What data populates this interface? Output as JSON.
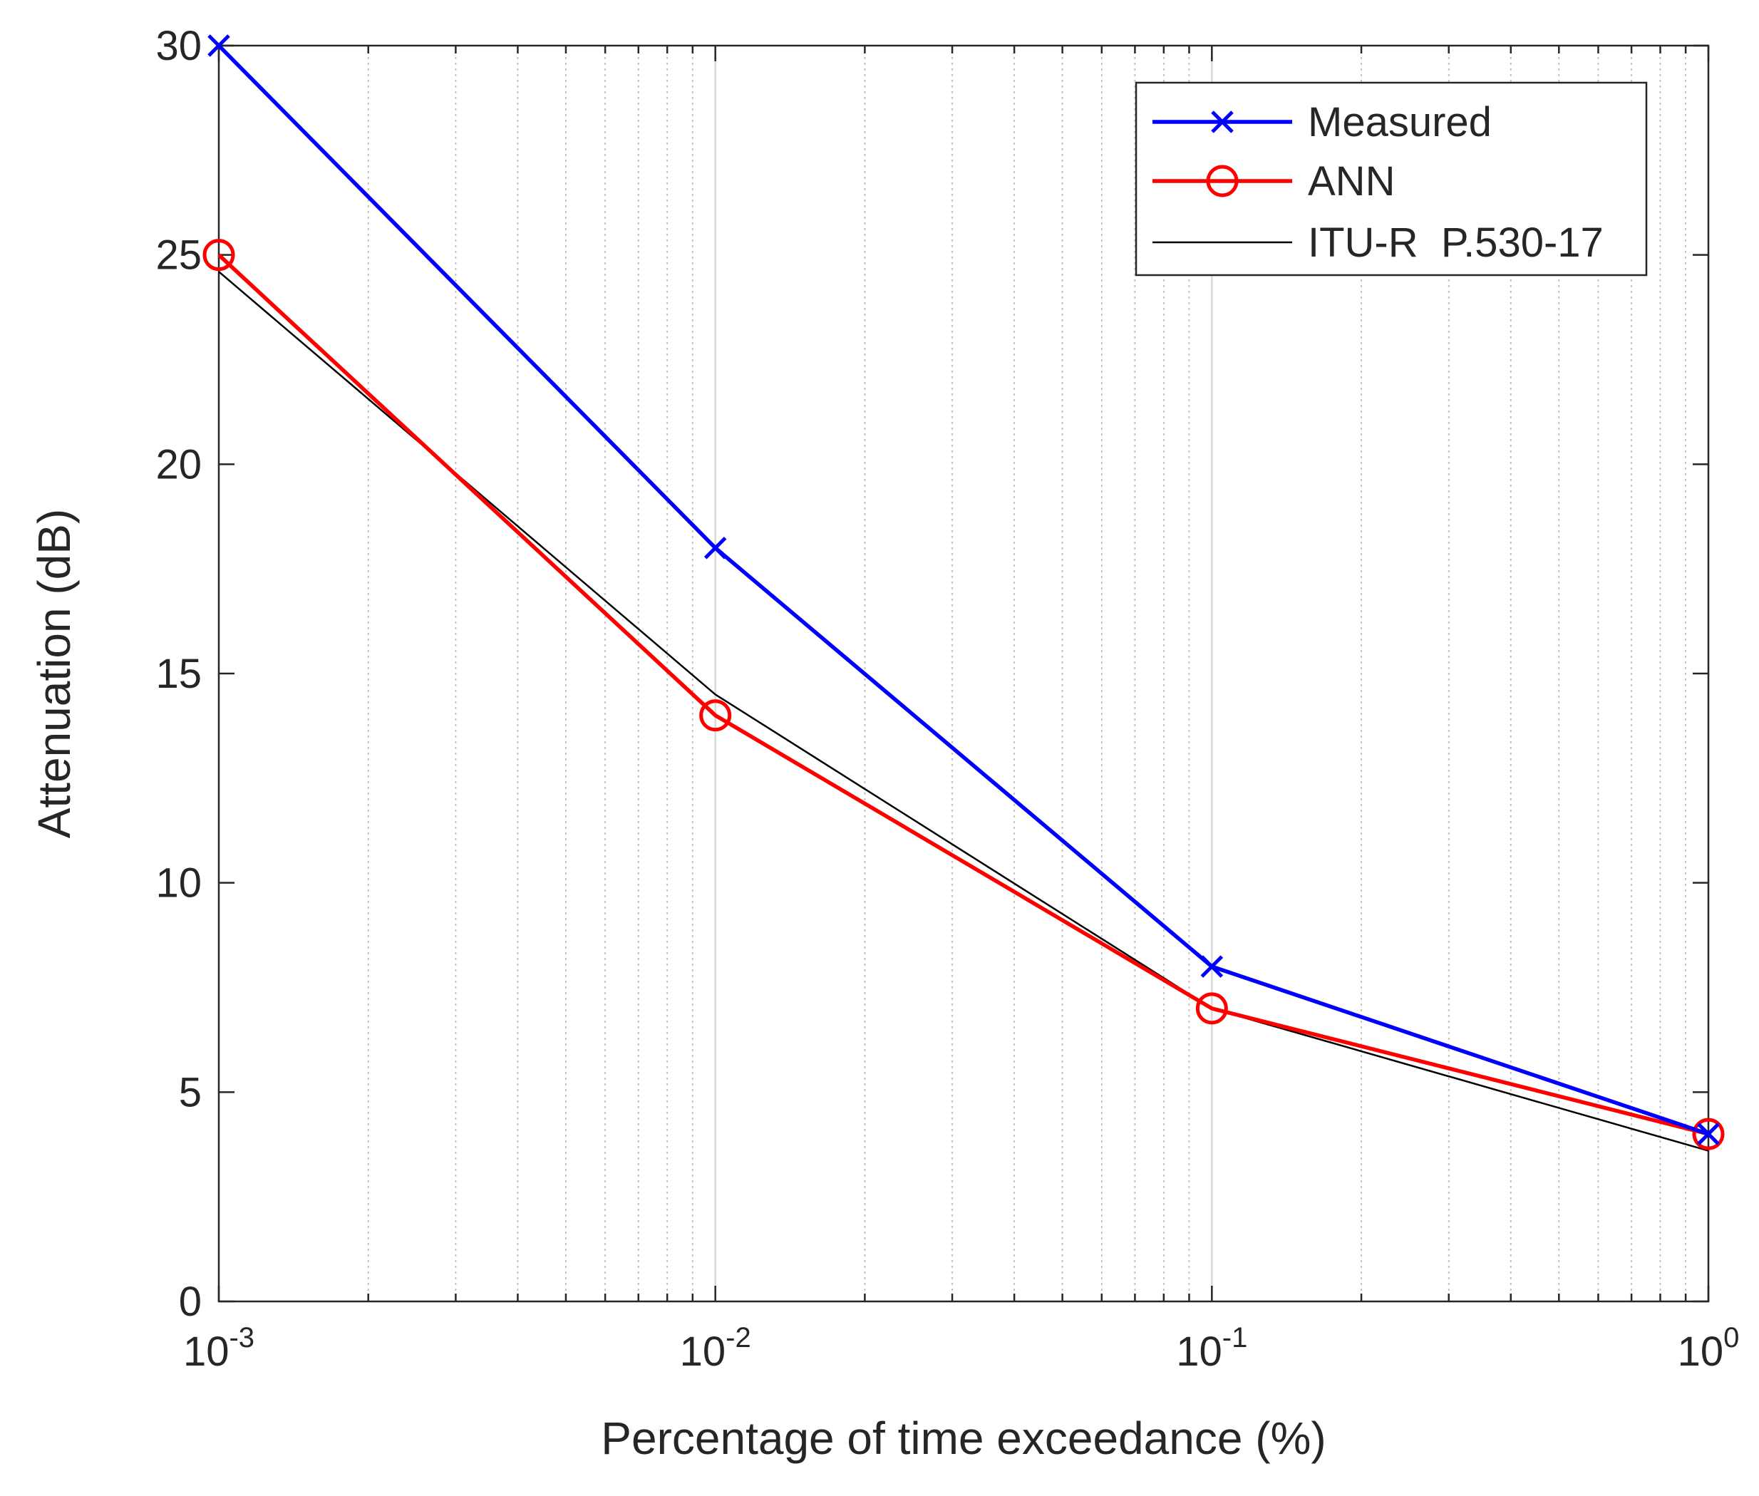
{
  "chart_data": {
    "type": "line",
    "title": "",
    "xlabel": "Percentage of time exceedance (%)",
    "ylabel": "Attenuation (dB)",
    "xscale": "log",
    "xlim": [
      0.001,
      1
    ],
    "ylim": [
      0,
      30
    ],
    "grid": "x-minor-and-major",
    "legend_position": "top-right",
    "x_ticks": [
      {
        "value": 0.001,
        "base": "10",
        "exp": "-3"
      },
      {
        "value": 0.01,
        "base": "10",
        "exp": "-2"
      },
      {
        "value": 0.1,
        "base": "10",
        "exp": "-1"
      },
      {
        "value": 1,
        "base": "10",
        "exp": "0"
      }
    ],
    "y_ticks": [
      {
        "value": 0,
        "label": "0"
      },
      {
        "value": 5,
        "label": "5"
      },
      {
        "value": 10,
        "label": "10"
      },
      {
        "value": 15,
        "label": "15"
      },
      {
        "value": 20,
        "label": "20"
      },
      {
        "value": 25,
        "label": "25"
      },
      {
        "value": 30,
        "label": "30"
      }
    ],
    "series": [
      {
        "name": "Measured",
        "color": "#0000ff",
        "marker": "x",
        "x": [
          0.001,
          0.01,
          0.1,
          1
        ],
        "values": [
          30,
          18,
          8,
          4
        ]
      },
      {
        "name": "ANN",
        "color": "#ff0000",
        "marker": "o",
        "x": [
          0.001,
          0.01,
          0.1,
          1
        ],
        "values": [
          25,
          14,
          7,
          4
        ]
      },
      {
        "name": "ITU-R  P.530-17",
        "color": "#000000",
        "marker": "none",
        "x": [
          0.001,
          0.01,
          0.1,
          1
        ],
        "values": [
          24.6,
          14.5,
          7.0,
          3.6
        ]
      }
    ]
  }
}
